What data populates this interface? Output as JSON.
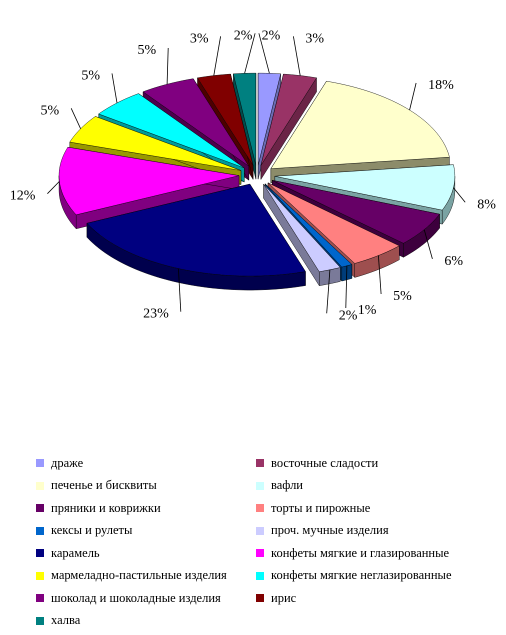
{
  "chart_data": {
    "type": "pie",
    "style": "3d-exploded",
    "title": "",
    "slices": [
      {
        "label": "драже",
        "value": 2,
        "display": "2%",
        "color": "#9999ff",
        "side": "#6b6bb3"
      },
      {
        "label": "восточные сладости",
        "value": 3,
        "display": "3%",
        "color": "#993366",
        "side": "#6b2447"
      },
      {
        "label": "печенье и бисквиты",
        "value": 18,
        "display": "18%",
        "color": "#ffffcc",
        "side": "#8c8c6a"
      },
      {
        "label": "вафли",
        "value": 8,
        "display": "8%",
        "color": "#ccffff",
        "side": "#7aa3a3"
      },
      {
        "label": "пряники и коврижки",
        "value": 6,
        "display": "6%",
        "color": "#660066",
        "side": "#3d003d"
      },
      {
        "label": "торты и пирожные",
        "value": 5,
        "display": "5%",
        "color": "#ff8080",
        "side": "#9e4f4f"
      },
      {
        "label": "кексы и рулеты",
        "value": 1,
        "display": "1%",
        "color": "#0066cc",
        "side": "#003d7a"
      },
      {
        "label": "проч. мучные изделия",
        "value": 2,
        "display": "2%",
        "color": "#ccccff",
        "side": "#7a7a99"
      },
      {
        "label": "карамель",
        "value": 23,
        "display": "23%",
        "color": "#000080",
        "side": "#00004d"
      },
      {
        "label": "конфеты мягкие и глазированные",
        "value": 12,
        "display": "12%",
        "color": "#ff00ff",
        "side": "#800080"
      },
      {
        "label": "мармеладно-пастильные изделия",
        "value": 5,
        "display": "5%",
        "color": "#ffff00",
        "side": "#999900"
      },
      {
        "label": "конфеты мягкие неглазированные",
        "value": 5,
        "display": "5%",
        "color": "#00ffff",
        "side": "#009999"
      },
      {
        "label": "шоколад и шоколадные изделия",
        "value": 5,
        "display": "5%",
        "color": "#800080",
        "side": "#4d004d"
      },
      {
        "label": "ирис",
        "value": 3,
        "display": "3%",
        "color": "#800000",
        "side": "#4d0000"
      },
      {
        "label": "халва",
        "value": 2,
        "display": "2%",
        "color": "#008080",
        "side": "#004d4d"
      }
    ],
    "legend_placement": "bottom"
  }
}
